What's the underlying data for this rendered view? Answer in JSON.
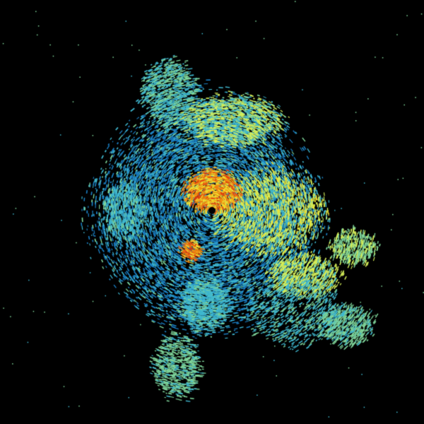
{
  "image": {
    "kind": "weather-radar-reflectivity-scan",
    "background_color": "#000000",
    "palette": {
      "light_green": "#7fd59a",
      "cyan": "#3fb8d0",
      "blue": "#1a7fc4",
      "yellow_green": "#d6ef5a",
      "yellow": "#f2e030",
      "orange": "#f08a10",
      "red": "#e03a10"
    }
  }
}
